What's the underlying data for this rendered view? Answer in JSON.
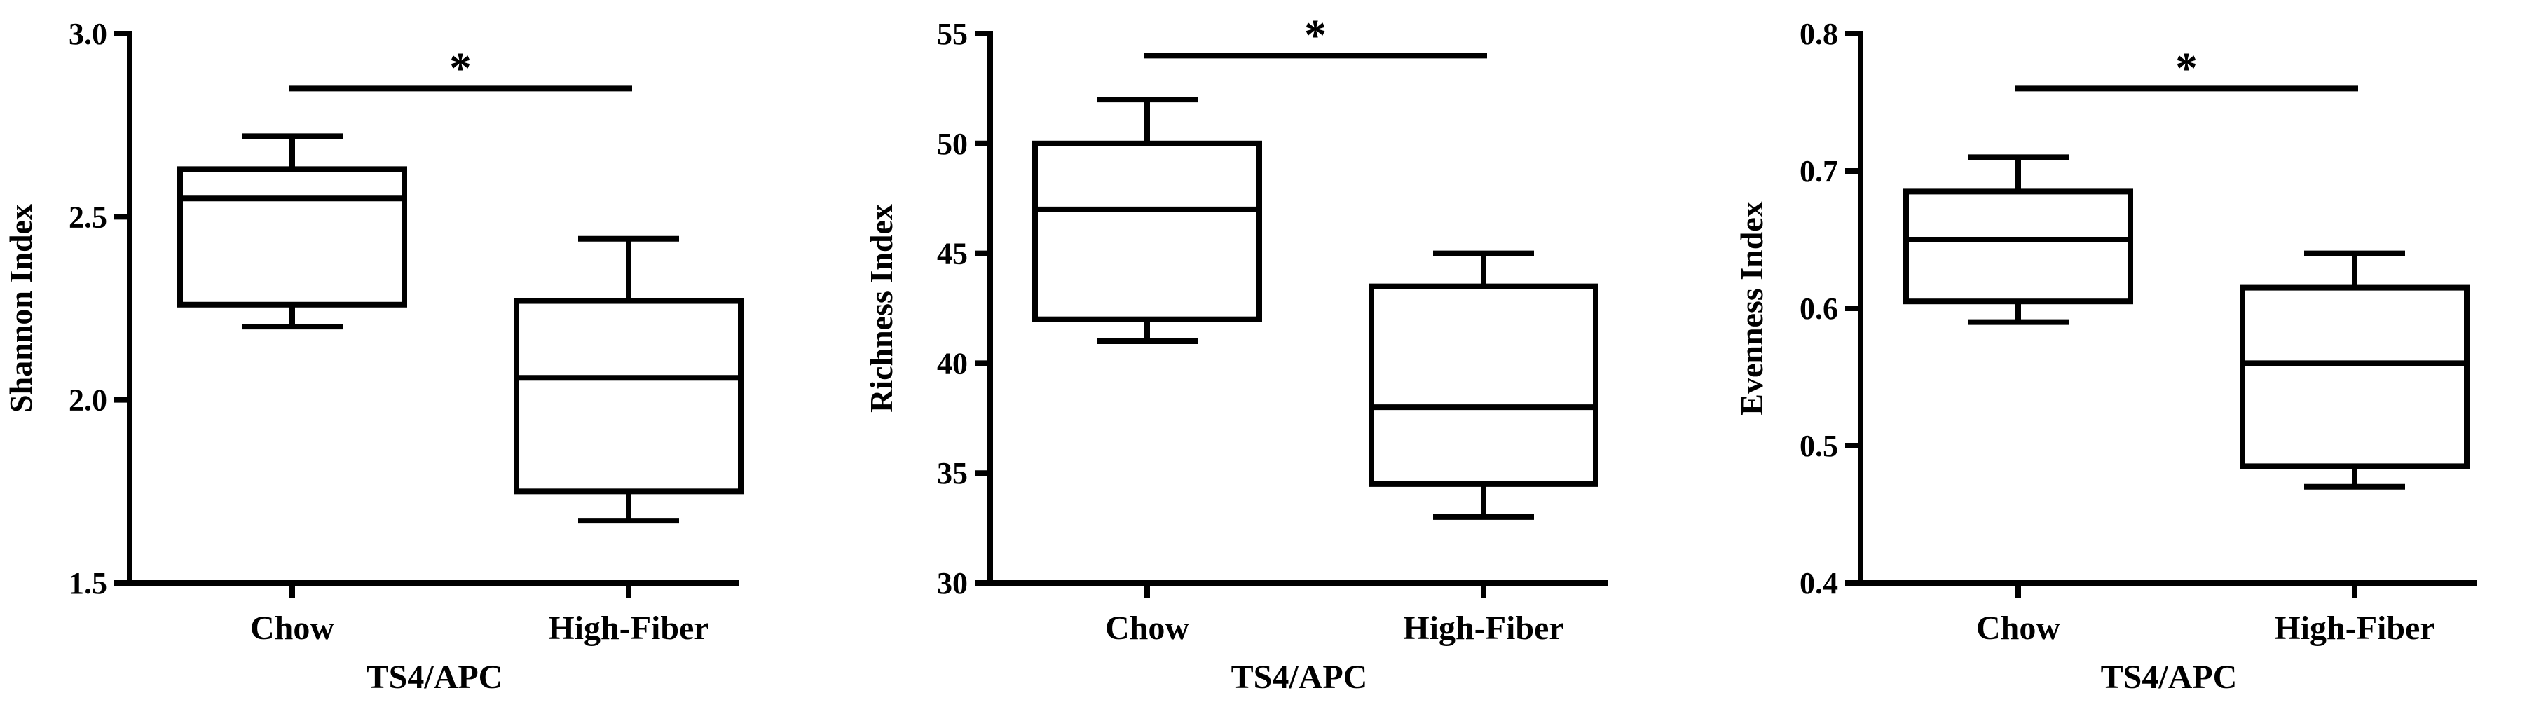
{
  "chart_data": [
    {
      "type": "box",
      "ylabel": "Shannon Index",
      "xlabel": "TS4/APC",
      "categories": [
        "Chow",
        "High-Fiber"
      ],
      "ylim": [
        1.5,
        3.0
      ],
      "yticks": [
        1.5,
        2.0,
        2.5,
        3.0
      ],
      "ytick_labels": [
        "1.5",
        "2.0",
        "2.5",
        "3.0"
      ],
      "boxes": [
        {
          "category": "Chow",
          "min": 2.2,
          "q1": 2.26,
          "median": 2.55,
          "q3": 2.63,
          "max": 2.72
        },
        {
          "category": "High-Fiber",
          "min": 1.67,
          "q1": 1.75,
          "median": 2.06,
          "q3": 2.27,
          "max": 2.44
        }
      ],
      "significance": {
        "label": "*",
        "bar_y": 2.85
      }
    },
    {
      "type": "box",
      "ylabel": "Richness Index",
      "xlabel": "TS4/APC",
      "categories": [
        "Chow",
        "High-Fiber"
      ],
      "ylim": [
        30,
        55
      ],
      "yticks": [
        30,
        35,
        40,
        45,
        50,
        55
      ],
      "ytick_labels": [
        "30",
        "35",
        "40",
        "45",
        "50",
        "55"
      ],
      "boxes": [
        {
          "category": "Chow",
          "min": 41,
          "q1": 42,
          "median": 47,
          "q3": 50,
          "max": 52
        },
        {
          "category": "High-Fiber",
          "min": 33,
          "q1": 34.5,
          "median": 38,
          "q3": 43.5,
          "max": 45
        }
      ],
      "significance": {
        "label": "*",
        "bar_y": 54
      }
    },
    {
      "type": "box",
      "ylabel": "Evenness Index",
      "xlabel": "TS4/APC",
      "categories": [
        "Chow",
        "High-Fiber"
      ],
      "ylim": [
        0.4,
        0.8
      ],
      "yticks": [
        0.4,
        0.5,
        0.6,
        0.7,
        0.8
      ],
      "ytick_labels": [
        "0.4",
        "0.5",
        "0.6",
        "0.7",
        "0.8"
      ],
      "boxes": [
        {
          "category": "Chow",
          "min": 0.59,
          "q1": 0.605,
          "median": 0.65,
          "q3": 0.685,
          "max": 0.71
        },
        {
          "category": "High-Fiber",
          "min": 0.47,
          "q1": 0.485,
          "median": 0.56,
          "q3": 0.615,
          "max": 0.64
        }
      ],
      "significance": {
        "label": "*",
        "bar_y": 0.76
      }
    }
  ]
}
